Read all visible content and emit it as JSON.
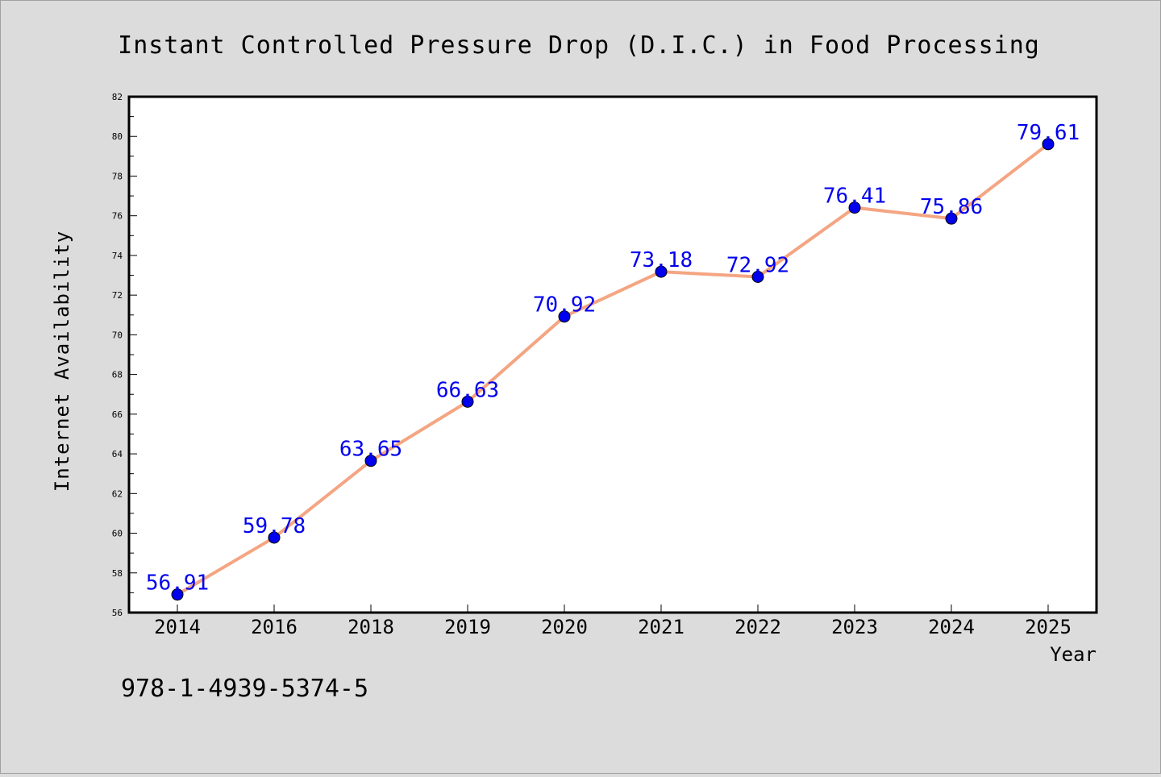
{
  "chart_data": {
    "type": "line",
    "title": "Instant Controlled Pressure Drop (D.I.C.) in Food Processing",
    "xlabel": "Year",
    "ylabel": "Internet Availability",
    "categories": [
      "2014",
      "2016",
      "2018",
      "2019",
      "2020",
      "2021",
      "2022",
      "2023",
      "2024",
      "2025"
    ],
    "series": [
      {
        "values": [
          56.91,
          59.78,
          63.65,
          66.63,
          70.92,
          73.18,
          72.92,
          76.41,
          75.86,
          79.61
        ]
      }
    ],
    "data_labels": [
      "56.91",
      "59.78",
      "63.65",
      "66.63",
      "70.92",
      "73.18",
      "72.92",
      "76.41",
      "75.86",
      "79.61"
    ],
    "ylim": [
      56,
      82
    ],
    "yticks": [
      56,
      58,
      60,
      62,
      64,
      66,
      68,
      70,
      72,
      74,
      76,
      78,
      80,
      82
    ],
    "grid": false,
    "legend": "none",
    "colors": {
      "line": "#f4a582",
      "marker": "#0000ee",
      "label": "#0000ee",
      "background": "#dcdcdc",
      "plot_bg": "#ffffff"
    }
  },
  "footer": {
    "isbn": "978-1-4939-5374-5"
  }
}
